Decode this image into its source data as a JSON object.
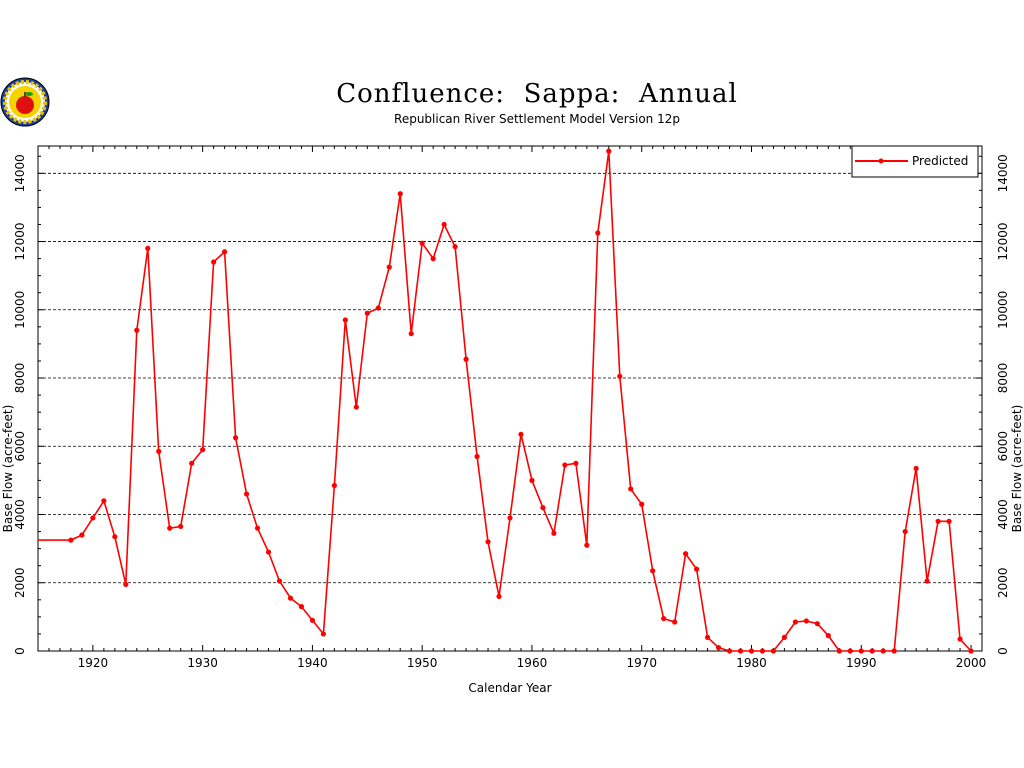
{
  "logo": {
    "icon": "apple-seal-logo"
  },
  "chart_data": {
    "type": "line",
    "title": "Confluence:  Sappa:  Annual",
    "subtitle": "Republican River Settlement Model Version 12p",
    "xlabel": "Calendar Year",
    "ylabel_left": "Base Flow (acre-feet)",
    "ylabel_right": "Base Flow (acre-feet)",
    "xlim": [
      1915,
      2001
    ],
    "ylim": [
      0,
      14800
    ],
    "xticks": [
      1920,
      1930,
      1940,
      1950,
      1960,
      1970,
      1980,
      1990,
      2000
    ],
    "yticks": [
      0,
      2000,
      4000,
      6000,
      8000,
      10000,
      12000,
      14000
    ],
    "grid": "horizontal-dashed",
    "legend_position": "top-right",
    "series_color": "#ff0000",
    "series": [
      {
        "name": "Predicted",
        "x": [
          1915,
          1918,
          1919,
          1920,
          1921,
          1922,
          1923,
          1924,
          1925,
          1926,
          1927,
          1928,
          1929,
          1930,
          1931,
          1932,
          1933,
          1934,
          1935,
          1936,
          1937,
          1938,
          1939,
          1940,
          1941,
          1942,
          1943,
          1944,
          1945,
          1946,
          1947,
          1948,
          1949,
          1950,
          1951,
          1952,
          1953,
          1954,
          1955,
          1956,
          1957,
          1958,
          1959,
          1960,
          1961,
          1962,
          1963,
          1964,
          1965,
          1966,
          1967,
          1968,
          1969,
          1970,
          1971,
          1972,
          1973,
          1974,
          1975,
          1976,
          1977,
          1978,
          1979,
          1980,
          1981,
          1982,
          1983,
          1984,
          1985,
          1986,
          1987,
          1988,
          1989,
          1990,
          1991,
          1992,
          1993,
          1994,
          1995,
          1996,
          1997,
          1998,
          1999,
          2000
        ],
        "y": [
          3250,
          3250,
          3400,
          3900,
          4400,
          3350,
          1950,
          9400,
          11800,
          5850,
          3600,
          3650,
          5500,
          5900,
          11400,
          11700,
          6250,
          4600,
          3600,
          2900,
          2050,
          1550,
          1300,
          900,
          500,
          4850,
          9700,
          7150,
          9900,
          10050,
          11250,
          13400,
          9300,
          11950,
          11500,
          12500,
          11850,
          8550,
          5700,
          3200,
          1600,
          3900,
          6350,
          5000,
          4200,
          3450,
          5450,
          5500,
          3100,
          12250,
          14650,
          8050,
          4750,
          4300,
          2350,
          950,
          850,
          2850,
          2400,
          400,
          100,
          0,
          0,
          0,
          0,
          0,
          400,
          850,
          880,
          800,
          450,
          0,
          0,
          0,
          0,
          0,
          0,
          3500,
          5350,
          2050,
          3800,
          3800,
          350,
          0
        ]
      }
    ]
  }
}
